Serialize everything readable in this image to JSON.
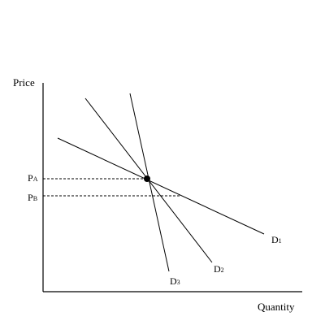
{
  "axes": {
    "y_label": "Price",
    "x_label": "Quantity"
  },
  "price_levels": [
    {
      "main": "P",
      "sub": "A"
    },
    {
      "main": "P",
      "sub": "B"
    }
  ],
  "curves": [
    {
      "main": "D",
      "sub": "1"
    },
    {
      "main": "D",
      "sub": "2"
    },
    {
      "main": "D",
      "sub": "3"
    }
  ]
}
